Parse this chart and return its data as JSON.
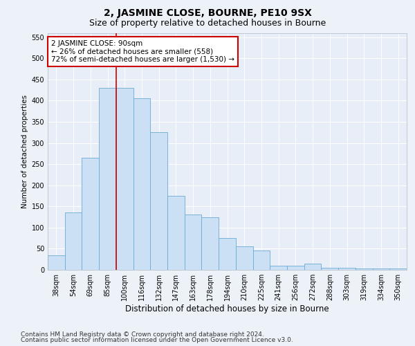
{
  "title": "2, JASMINE CLOSE, BOURNE, PE10 9SX",
  "subtitle": "Size of property relative to detached houses in Bourne",
  "xlabel": "Distribution of detached houses by size in Bourne",
  "ylabel": "Number of detached properties",
  "categories": [
    "38sqm",
    "54sqm",
    "69sqm",
    "85sqm",
    "100sqm",
    "116sqm",
    "132sqm",
    "147sqm",
    "163sqm",
    "178sqm",
    "194sqm",
    "210sqm",
    "225sqm",
    "241sqm",
    "256sqm",
    "272sqm",
    "288sqm",
    "303sqm",
    "319sqm",
    "334sqm",
    "350sqm"
  ],
  "values": [
    35,
    135,
    265,
    430,
    430,
    405,
    325,
    175,
    130,
    125,
    75,
    55,
    45,
    10,
    10,
    15,
    5,
    5,
    3,
    3,
    3
  ],
  "bar_color": "#cce0f5",
  "bar_edge_color": "#6aaad4",
  "red_line_x": 3.5,
  "annotation_text": "2 JASMINE CLOSE: 90sqm\n← 26% of detached houses are smaller (558)\n72% of semi-detached houses are larger (1,530) →",
  "annotation_box_color": "#ffffff",
  "annotation_box_edge": "#cc0000",
  "ylim": [
    0,
    560
  ],
  "yticks": [
    0,
    50,
    100,
    150,
    200,
    250,
    300,
    350,
    400,
    450,
    500,
    550
  ],
  "background_color": "#edf2f9",
  "plot_background": "#e8eef8",
  "grid_color": "#ffffff",
  "footer_line1": "Contains HM Land Registry data © Crown copyright and database right 2024.",
  "footer_line2": "Contains public sector information licensed under the Open Government Licence v3.0.",
  "title_fontsize": 10,
  "subtitle_fontsize": 9,
  "xlabel_fontsize": 8.5,
  "ylabel_fontsize": 7.5,
  "tick_fontsize": 7,
  "annotation_fontsize": 7.5,
  "footer_fontsize": 6.5
}
